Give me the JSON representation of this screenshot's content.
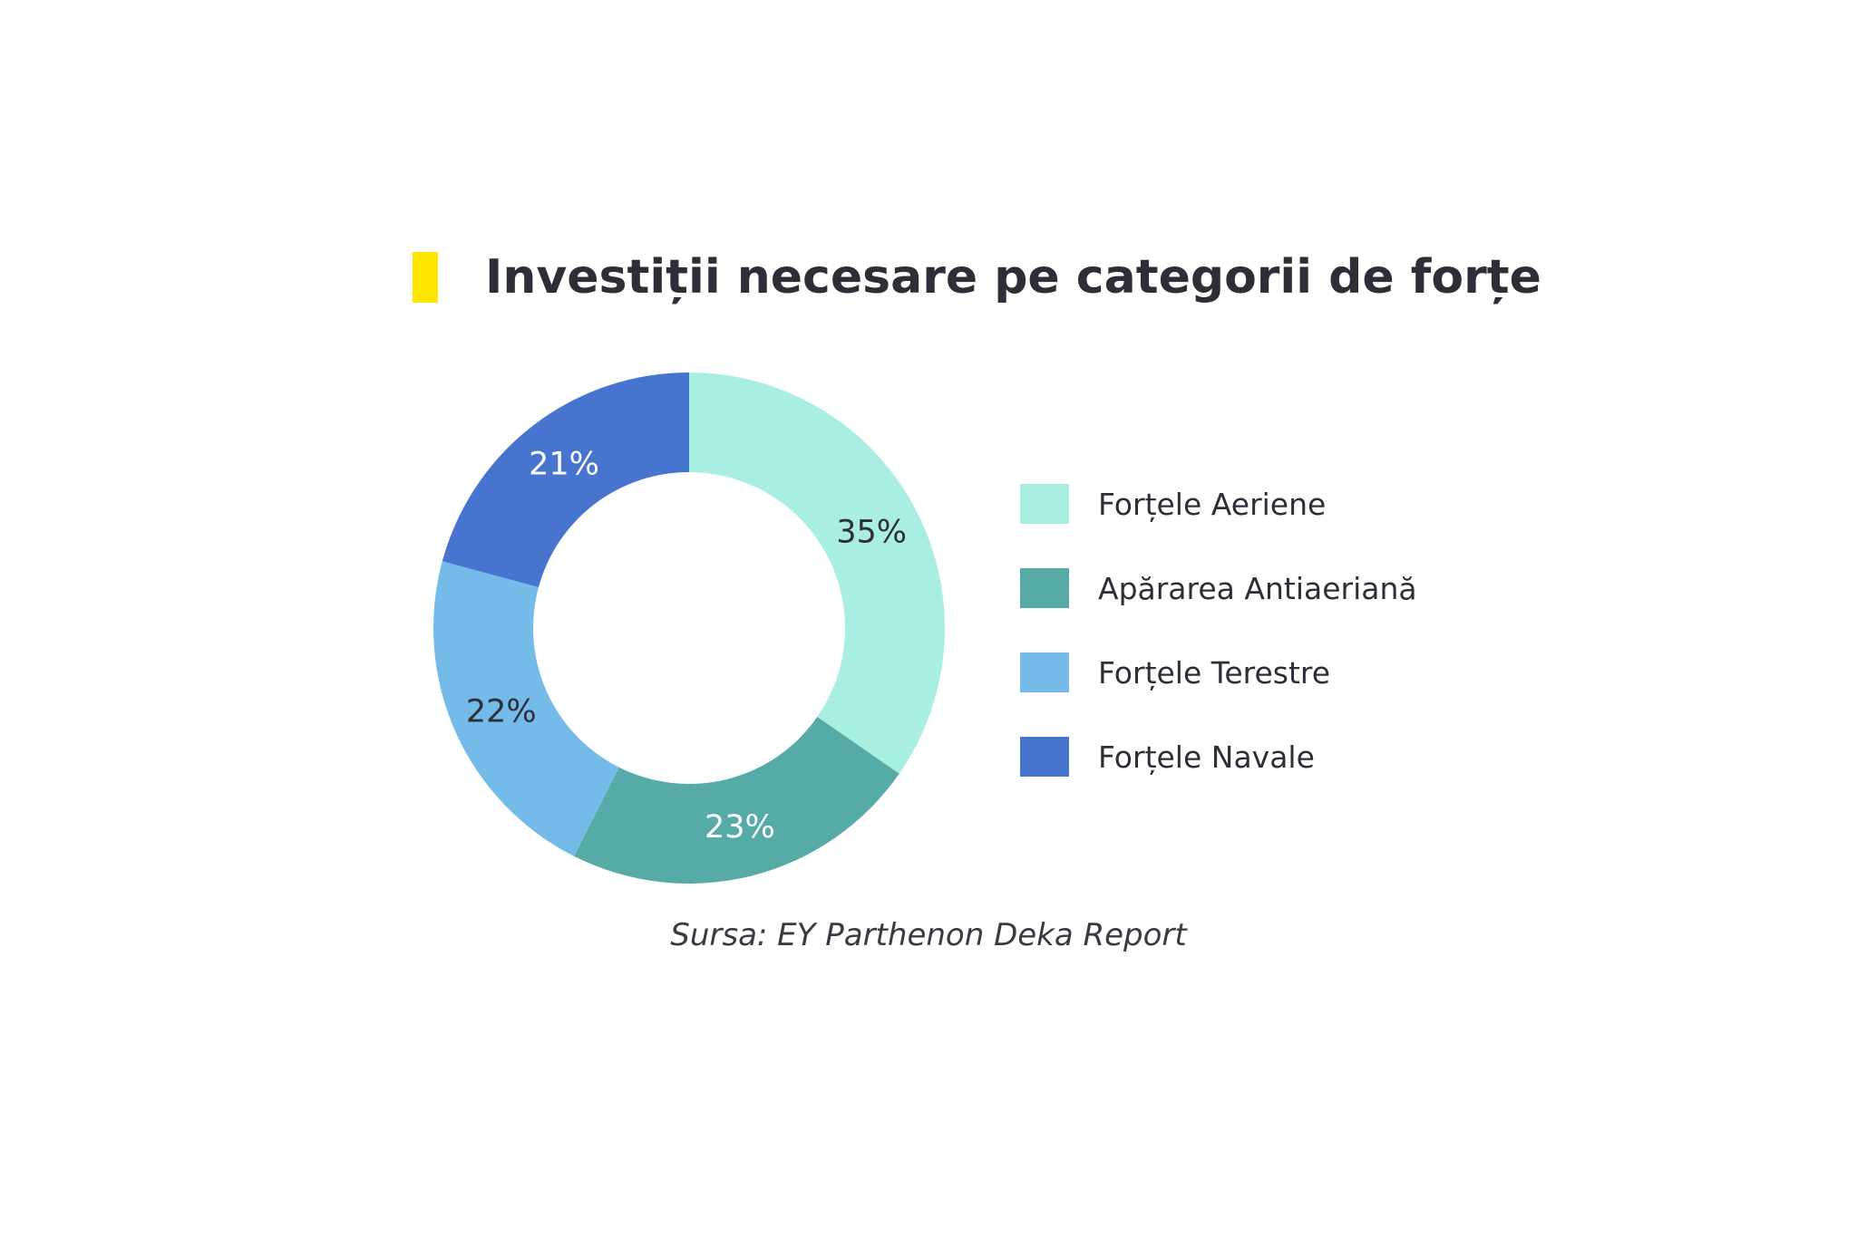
{
  "chart_data": {
    "type": "pie",
    "donut": true,
    "title": "Investiții necesare pe categorii de forțe",
    "categories": [
      "Forțele Aeriene",
      "Apărarea Antiaeriană",
      "Forțele Terestre",
      "Forțele Navale"
    ],
    "values": [
      35,
      23,
      22,
      21
    ],
    "value_labels": [
      "35%",
      "23%",
      "22%",
      "21%"
    ],
    "colors": [
      "#a8efe2",
      "#57aba7",
      "#75bbea",
      "#4674ce"
    ],
    "label_colors": [
      "#2e2e38",
      "#ffffff",
      "#2e2e38",
      "#ffffff"
    ],
    "legend_position": "right",
    "source": "Sursa: EY Parthenon Deka Report"
  },
  "accent_color": "#ffe600"
}
